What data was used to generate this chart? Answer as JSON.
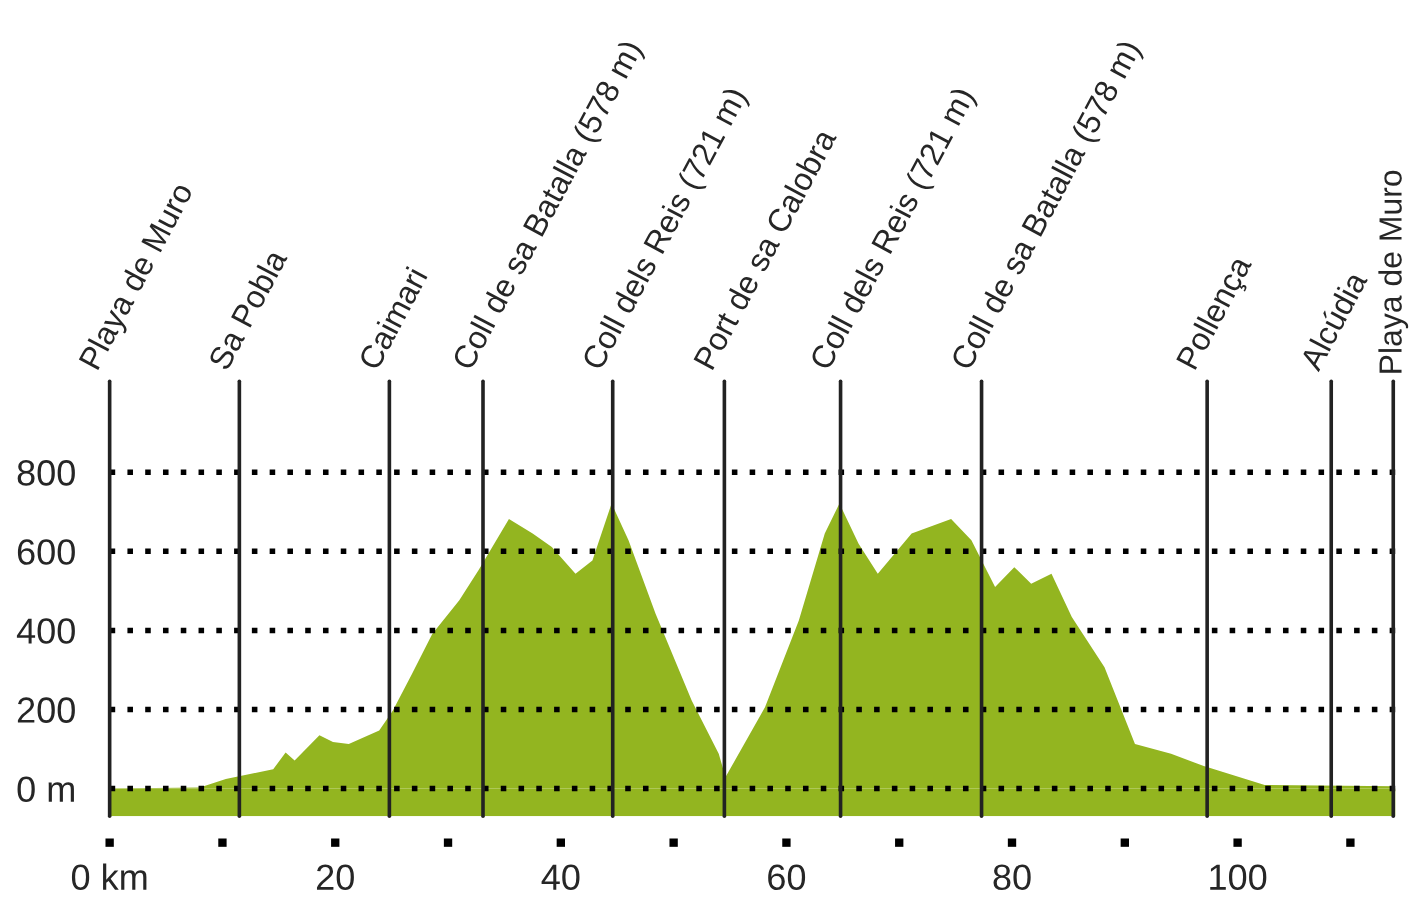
{
  "chart_data": {
    "type": "area",
    "x": [
      0,
      8,
      10.3,
      14.5,
      15.6,
      16.4,
      18.6,
      19.8,
      21.2,
      23.9,
      25.1,
      26.8,
      28.6,
      31,
      32.7,
      35.4,
      37.5,
      39.2,
      41.3,
      42.8,
      44.5,
      46,
      48.4,
      51.6,
      54,
      54.6,
      58.1,
      61.1,
      63.4,
      64.7,
      66.4,
      68.1,
      71.1,
      74.6,
      76.4,
      78.5,
      80.2,
      81.7,
      83.5,
      85.3,
      88.2,
      90.9,
      94.1,
      97,
      102.4,
      113.9
    ],
    "series": [
      {
        "color": "#93b520",
        "values": [
          0,
          3,
          24,
          49,
          91,
          71,
          135,
          118,
          113,
          147,
          197,
          290,
          391,
          476,
          552,
          682,
          645,
          611,
          543,
          577,
          721,
          628,
          442,
          223,
          88,
          29,
          206,
          425,
          645,
          721,
          619,
          543,
          645,
          682,
          628,
          510,
          560,
          518,
          543,
          434,
          307,
          113,
          88,
          57,
          9,
          6
        ]
      }
    ],
    "xlim": [
      0,
      114
    ],
    "xticks": [
      {
        "value": 0,
        "label": "0 km"
      },
      {
        "value": 10,
        "label": null
      },
      20,
      {
        "value": 30,
        "label": null
      },
      40,
      {
        "value": 50,
        "label": null
      },
      60,
      {
        "value": 70,
        "label": null
      },
      80,
      {
        "value": 90,
        "label": null
      },
      100,
      {
        "value": 110,
        "label": null
      }
    ],
    "ylim": [
      -70,
      1030
    ],
    "yticks": [
      {
        "value": 0,
        "label": "0 m"
      },
      200,
      400,
      600,
      800
    ],
    "grid": "y",
    "line_style": "dotted",
    "bands": [
      {
        "axis": "y",
        "from": -70,
        "to": 0,
        "color": "#93b520"
      }
    ],
    "ref_lines": [
      {
        "axis": "x",
        "value": 0,
        "label": "Playa de Muro"
      },
      {
        "axis": "x",
        "value": 11.5,
        "label": "Sa Pobla"
      },
      {
        "axis": "x",
        "value": 24.8,
        "label": "Caimari"
      },
      {
        "axis": "x",
        "value": 33.1,
        "label": "Coll de sa Batalla (578 m)"
      },
      {
        "axis": "x",
        "value": 44.6,
        "label": "Coll dels Reis (721 m)"
      },
      {
        "axis": "x",
        "value": 54.5,
        "label": "Port de sa Calobra"
      },
      {
        "axis": "x",
        "value": 64.8,
        "label": "Coll dels Reis (721 m)"
      },
      {
        "axis": "x",
        "value": 77.3,
        "label": "Coll de sa Batalla (578 m)"
      },
      {
        "axis": "x",
        "value": 97.3,
        "label": "Pollença"
      },
      {
        "axis": "x",
        "value": 108.3,
        "label": "Alcúdia"
      },
      {
        "axis": "x",
        "value": 113.8,
        "label": "Playa de Muro"
      }
    ]
  }
}
